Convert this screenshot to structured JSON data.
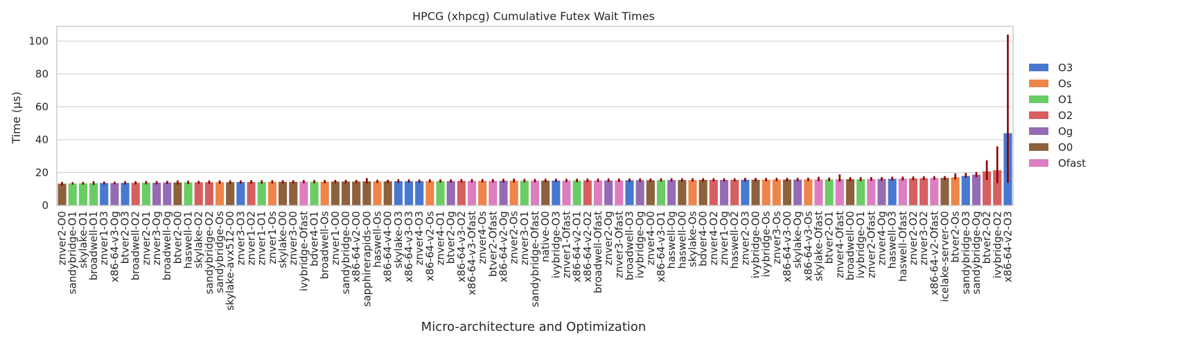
{
  "chart_data": {
    "type": "bar",
    "title": "HPCG (xhpcg) Cumulative Futex Wait Times",
    "xlabel": "Micro-architecture and Optimization",
    "ylabel": "Time (µs)",
    "ylim": [
      0,
      109
    ],
    "yticks": [
      0,
      20,
      40,
      60,
      80,
      100
    ],
    "grid": true,
    "legend_position": "right",
    "legend": [
      {
        "name": "O3",
        "color": "#4878d0"
      },
      {
        "name": "Os",
        "color": "#ee854a"
      },
      {
        "name": "O1",
        "color": "#6acc64"
      },
      {
        "name": "O2",
        "color": "#d65f5f"
      },
      {
        "name": "Og",
        "color": "#956cb4"
      },
      {
        "name": "O0",
        "color": "#8c613c"
      },
      {
        "name": "Ofast",
        "color": "#dc7ec0"
      }
    ],
    "error_bar_color": "#8b0000",
    "categories": [
      "znver2-O0",
      "sandybridge-O1",
      "skylake-O1",
      "broadwell-O1",
      "znver1-O3",
      "x86-64-v3-Og",
      "btver2-O3",
      "broadwell-O2",
      "znver2-O1",
      "znver3-Og",
      "broadwell-Og",
      "btver2-O0",
      "haswell-O1",
      "skylake-O2",
      "sandybridge-O2",
      "sandybridge-Os",
      "skylake-avx512-O0",
      "znver3-O3",
      "znver1-O2",
      "znver1-O1",
      "znver1-Os",
      "skylake-O0",
      "znver3-O0",
      "ivybridge-Ofast",
      "bdver4-O1",
      "broadwell-Os",
      "znver1-O0",
      "sandybridge-O0",
      "x86-64-v2-O0",
      "sapphirerapids-O0",
      "haswell-Os",
      "x86-64-v4-O0",
      "skylake-O3",
      "x86-64-v3-O3",
      "znver4-O3",
      "x86-64-v2-Os",
      "znver4-O1",
      "btver2-Og",
      "x86-64-v3-O2",
      "x86-64-v3-Ofast",
      "znver4-Os",
      "btver2-Ofast",
      "x86-64-v2-Og",
      "znver2-Os",
      "znver3-O1",
      "sandybridge-Ofast",
      "native-O0",
      "ivybridge-O3",
      "znver1-Ofast",
      "x86-64-v2-O1",
      "x86-64-v2-O2",
      "broadwell-Ofast",
      "znver2-Og",
      "znver3-Ofast",
      "broadwell-O3",
      "ivybridge-Og",
      "znver4-O0",
      "x86-64-v3-O1",
      "haswell-Og",
      "haswell-O0",
      "skylake-Os",
      "bdver4-O0",
      "znver4-O2",
      "znver1-Og",
      "haswell-O2",
      "znver2-O3",
      "ivybridge-O0",
      "ivybridge-Os",
      "znver3-Os",
      "x86-64-v3-O0",
      "skylake-Og",
      "x86-64-v3-Os",
      "skylake-Ofast",
      "btver2-O1",
      "znver4-Ofast",
      "broadwell-O0",
      "ivybridge-O1",
      "znver2-Ofast",
      "znver4-Og",
      "haswell-O3",
      "haswell-Ofast",
      "znver2-O2",
      "znver3-O2",
      "x86-64-v2-Ofast",
      "icelake-server-O0",
      "btver2-Os",
      "sandybridge-O3",
      "sandybridge-Og",
      "btver2-O2",
      "ivybridge-O2",
      "x86-64-v2-O3"
    ],
    "opt_levels": [
      "O0",
      "O1",
      "O1",
      "O1",
      "O3",
      "Og",
      "O3",
      "O2",
      "O1",
      "Og",
      "Og",
      "O0",
      "O1",
      "O2",
      "O2",
      "Os",
      "O0",
      "O3",
      "O2",
      "O1",
      "Os",
      "O0",
      "O0",
      "Ofast",
      "O1",
      "Os",
      "O0",
      "O0",
      "O0",
      "O0",
      "Os",
      "O0",
      "O3",
      "O3",
      "O3",
      "Os",
      "O1",
      "Og",
      "O2",
      "Ofast",
      "Os",
      "Ofast",
      "Og",
      "Os",
      "O1",
      "Ofast",
      "O0",
      "O3",
      "Ofast",
      "O1",
      "O2",
      "Ofast",
      "Og",
      "Ofast",
      "O3",
      "Og",
      "O0",
      "O1",
      "Og",
      "O0",
      "Os",
      "O0",
      "O2",
      "Og",
      "O2",
      "O3",
      "O0",
      "Os",
      "Os",
      "O0",
      "Og",
      "Os",
      "Ofast",
      "O1",
      "Ofast",
      "O0",
      "O1",
      "Ofast",
      "Og",
      "O3",
      "Ofast",
      "O2",
      "O2",
      "Ofast",
      "O0",
      "Os",
      "O3",
      "Og",
      "O2",
      "O2",
      "O3"
    ],
    "values": [
      13.3,
      13.4,
      13.5,
      13.6,
      13.7,
      13.7,
      13.8,
      13.8,
      13.9,
      13.9,
      14.0,
      14.0,
      14.1,
      14.1,
      14.2,
      14.2,
      14.2,
      14.3,
      14.3,
      14.3,
      14.4,
      14.4,
      14.4,
      14.5,
      14.5,
      14.5,
      14.6,
      14.6,
      14.6,
      14.7,
      14.7,
      14.7,
      14.8,
      14.8,
      14.8,
      14.9,
      14.9,
      14.9,
      15.0,
      15.0,
      15.0,
      15.0,
      15.1,
      15.1,
      15.1,
      15.1,
      15.2,
      15.2,
      15.2,
      15.2,
      15.3,
      15.3,
      15.3,
      15.3,
      15.4,
      15.4,
      15.4,
      15.5,
      15.5,
      15.5,
      15.5,
      15.6,
      15.6,
      15.6,
      15.6,
      15.7,
      15.7,
      15.7,
      15.8,
      15.8,
      15.8,
      15.9,
      15.9,
      15.9,
      16.0,
      16.0,
      16.0,
      16.1,
      16.2,
      16.3,
      16.4,
      16.5,
      16.6,
      16.7,
      16.8,
      17.2,
      18.0,
      18.8,
      20.8,
      21.5,
      44.0
    ],
    "error_low": [
      12.3,
      12.7,
      12.7,
      12.5,
      12.8,
      12.9,
      12.8,
      12.8,
      12.9,
      12.9,
      13.0,
      12.8,
      13.0,
      13.2,
      13.2,
      13.2,
      13.2,
      13.3,
      13.3,
      13.3,
      13.4,
      13.4,
      13.4,
      13.5,
      13.5,
      13.5,
      13.6,
      13.6,
      13.6,
      13.5,
      13.7,
      13.7,
      13.7,
      13.8,
      13.8,
      13.9,
      13.9,
      13.9,
      14.0,
      14.0,
      14.0,
      14.0,
      14.0,
      14.0,
      14.1,
      14.1,
      14.2,
      14.2,
      14.2,
      14.2,
      14.3,
      14.3,
      14.3,
      14.3,
      14.3,
      14.4,
      14.4,
      14.5,
      14.5,
      14.5,
      14.5,
      14.6,
      14.6,
      14.6,
      14.6,
      14.6,
      14.7,
      14.7,
      14.8,
      14.8,
      14.8,
      14.8,
      14.8,
      14.8,
      14.5,
      14.8,
      14.8,
      15.0,
      15.1,
      15.2,
      15.2,
      15.4,
      15.5,
      15.6,
      15.6,
      15.8,
      16.8,
      17.2,
      15.5,
      13.5,
      13.8
    ],
    "error_high": [
      14.4,
      14.2,
      14.4,
      14.8,
      14.6,
      14.5,
      14.8,
      14.8,
      14.9,
      14.9,
      15.0,
      15.3,
      15.1,
      15.0,
      15.3,
      15.3,
      15.3,
      15.3,
      15.4,
      15.4,
      15.4,
      15.4,
      15.4,
      15.5,
      15.5,
      15.5,
      15.6,
      15.6,
      15.6,
      16.7,
      15.7,
      15.7,
      16.0,
      15.9,
      15.8,
      16.0,
      15.9,
      15.9,
      16.1,
      16.1,
      16.1,
      16.1,
      16.3,
      16.3,
      16.2,
      16.2,
      16.3,
      16.3,
      16.3,
      16.3,
      16.4,
      16.4,
      16.5,
      16.4,
      16.5,
      16.5,
      16.5,
      16.6,
      16.6,
      16.6,
      16.6,
      16.6,
      16.6,
      16.6,
      16.6,
      16.8,
      16.8,
      16.8,
      16.8,
      16.8,
      16.8,
      16.9,
      17.5,
      17.0,
      18.9,
      17.3,
      17.3,
      17.3,
      17.3,
      17.5,
      17.6,
      17.7,
      17.8,
      17.9,
      17.9,
      19.5,
      19.8,
      20.4,
      27.5,
      36.0,
      104.0
    ]
  }
}
